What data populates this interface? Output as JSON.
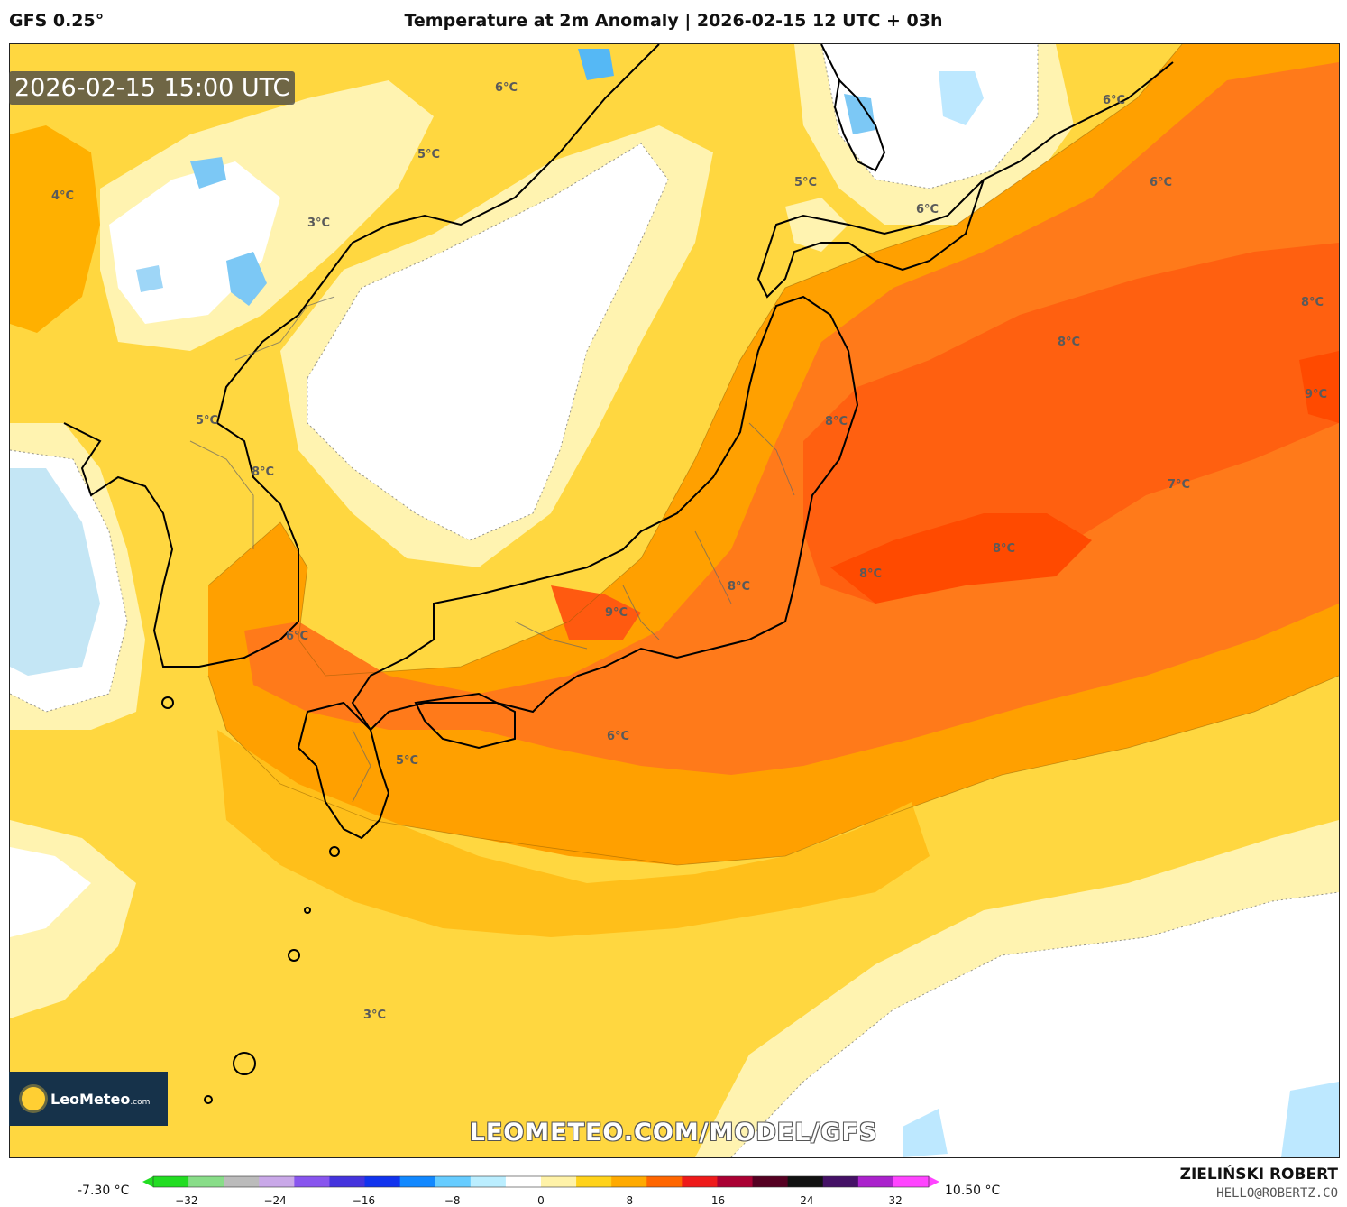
{
  "header": {
    "model": "GFS 0.25°",
    "title": "Temperature at 2m Anomaly | 2026-02-15 12 UTC + 03h"
  },
  "timestamp": "2026-02-15 15:00 UTC",
  "watermark": "LEOMETEO.COM/MODEL/GFS",
  "logo": {
    "name": "LeoMeteo",
    "suffix": ".com"
  },
  "author": {
    "name": "ZIELIŃSKI ROBERT",
    "email": "HELLO@ROBERTZ.CO"
  },
  "colorbar": {
    "min_label": "-7.30 °C",
    "max_label": "10.50 °C",
    "ticks": [
      "−32",
      "−24",
      "−16",
      "−8",
      "0",
      "8",
      "16",
      "24",
      "32"
    ],
    "tick_values": [
      -32,
      -24,
      -16,
      -8,
      0,
      8,
      16,
      24,
      32
    ],
    "range": [
      -35,
      35
    ],
    "colors": [
      "#22dd22",
      "#88dd88",
      "#bbbbbb",
      "#c9a8e8",
      "#8855ee",
      "#4433dd",
      "#1133ee",
      "#1188ff",
      "#66ccff",
      "#bbeeff",
      "#ffffff",
      "#fff2a8",
      "#ffd21a",
      "#ffaa00",
      "#ff6600",
      "#ee1a1a",
      "#aa0033",
      "#550022",
      "#111111",
      "#441166",
      "#aa22cc",
      "#ff44ff"
    ]
  },
  "map_labels": [
    {
      "text": "6°C"
    },
    {
      "text": "5°C"
    },
    {
      "text": "4°C"
    },
    {
      "text": "3°C"
    },
    {
      "text": "5°C"
    },
    {
      "text": "6°C"
    },
    {
      "text": "6°C"
    },
    {
      "text": "6°C"
    },
    {
      "text": "8°C"
    },
    {
      "text": "8°C"
    },
    {
      "text": "9°C"
    },
    {
      "text": "8°C"
    },
    {
      "text": "7°C"
    },
    {
      "text": "8°C"
    },
    {
      "text": "8°C"
    },
    {
      "text": "8°C"
    },
    {
      "text": "5°C"
    },
    {
      "text": "8°C"
    },
    {
      "text": "9°C"
    },
    {
      "text": "6°C"
    },
    {
      "text": "6°C"
    },
    {
      "text": "5°C"
    },
    {
      "text": "3°C"
    }
  ]
}
